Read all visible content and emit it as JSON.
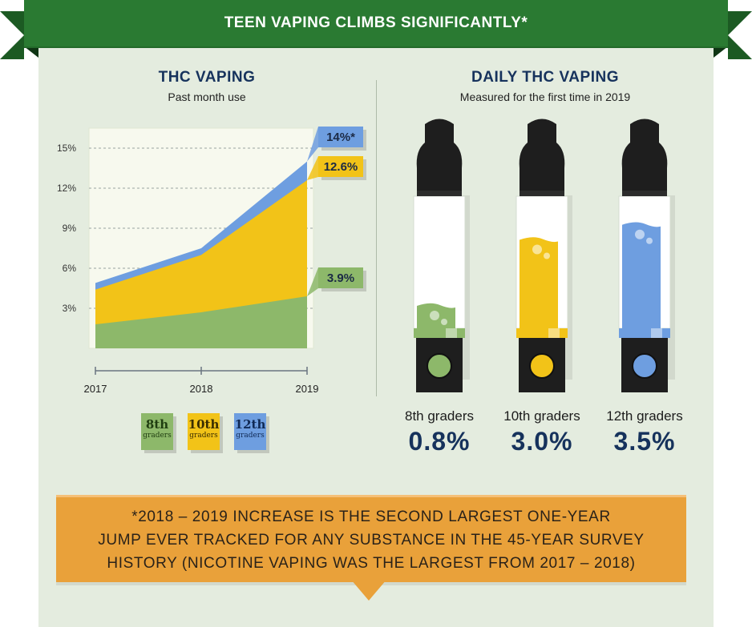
{
  "header": {
    "title": "TEEN VAPING CLIMBS SIGNIFICANTLY*"
  },
  "left_panel": {
    "title": "THC VAPING",
    "subtitle": "Past month use"
  },
  "right_panel": {
    "title": "DAILY THC VAPING",
    "subtitle": "Measured for the first time in 2019"
  },
  "legend": [
    {
      "label": "8th",
      "sub": "graders",
      "color": "#8db86a"
    },
    {
      "label": "10th",
      "sub": "graders",
      "color": "#f2c318"
    },
    {
      "label": "12th",
      "sub": "graders",
      "color": "#6e9ee0"
    }
  ],
  "pens": [
    {
      "label": "8th graders",
      "value_text": "0.8%",
      "color": "#8db86a"
    },
    {
      "label": "10th graders",
      "value_text": "3.0%",
      "color": "#f2c318"
    },
    {
      "label": "12th graders",
      "value_text": "3.5%",
      "color": "#6e9ee0"
    }
  ],
  "footnote": "*2018 – 2019 INCREASE IS THE SECOND LARGEST ONE-YEAR\nJUMP EVER TRACKED FOR ANY SUBSTANCE IN THE 45-YEAR SURVEY\nHISTORY (NICOTINE VAPING WAS THE LARGEST FROM 2017 – 2018)",
  "chart_data": [
    {
      "type": "area",
      "title": "THC VAPING",
      "subtitle": "Past month use",
      "x": [
        "2017",
        "2018",
        "2019"
      ],
      "y_ticks": [
        "3%",
        "6%",
        "9%",
        "12%",
        "15%"
      ],
      "ylim": [
        0,
        16.5
      ],
      "grid": true,
      "series": [
        {
          "name": "8th graders",
          "values": [
            1.8,
            2.7,
            3.9
          ],
          "color": "#8db86a",
          "end_label": "3.9%"
        },
        {
          "name": "10th graders",
          "values": [
            4.4,
            7.0,
            12.6
          ],
          "color": "#f2c318",
          "end_label": "12.6%"
        },
        {
          "name": "12th graders",
          "values": [
            4.9,
            7.5,
            14.0
          ],
          "color": "#6e9ee0",
          "end_label": "14%*"
        }
      ]
    },
    {
      "type": "bar",
      "title": "DAILY THC VAPING",
      "subtitle": "Measured for the first time in 2019",
      "categories": [
        "8th graders",
        "10th graders",
        "12th graders"
      ],
      "values": [
        0.8,
        3.0,
        3.5
      ],
      "labels": [
        "0.8%",
        "3.0%",
        "3.5%"
      ],
      "colors": [
        "#8db86a",
        "#f2c318",
        "#6e9ee0"
      ]
    }
  ]
}
